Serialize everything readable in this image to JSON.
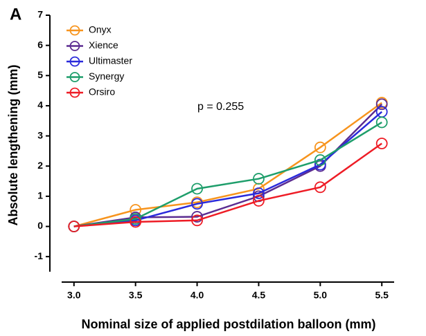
{
  "chart_data": {
    "type": "line",
    "panel_label": "A",
    "annotation": "p = 0.255",
    "x_label": "Nominal size of applied postdilation balloon (mm)",
    "y_label": "Absolute lengthening (mm)",
    "x": [
      3.0,
      3.5,
      4.0,
      4.5,
      5.0,
      5.5
    ],
    "xlim": [
      2.9,
      5.6
    ],
    "xticks": [
      {
        "value": 3.0,
        "label": "3.0"
      },
      {
        "value": 3.5,
        "label": "3.5"
      },
      {
        "value": 4.0,
        "label": "4.0"
      },
      {
        "value": 4.5,
        "label": "4.5"
      },
      {
        "value": 5.0,
        "label": "5.0"
      },
      {
        "value": 5.5,
        "label": "5.5"
      }
    ],
    "ylim": [
      -1.5,
      7
    ],
    "yticks": [
      -1,
      0,
      1,
      2,
      3,
      4,
      5,
      6,
      7
    ],
    "legend": "upper left",
    "series": [
      {
        "name": "Onyx",
        "color": "#f7941d",
        "values": [
          0,
          0.55,
          0.8,
          1.25,
          2.62,
          4.1
        ]
      },
      {
        "name": "Xience",
        "color": "#5b2c91",
        "values": [
          0,
          0.3,
          0.32,
          1.0,
          2.0,
          4.05
        ]
      },
      {
        "name": "Ultimaster",
        "color": "#2a2adb",
        "values": [
          0,
          0.2,
          0.75,
          1.1,
          2.05,
          3.8
        ]
      },
      {
        "name": "Synergy",
        "color": "#1e9e6b",
        "values": [
          0,
          0.25,
          1.25,
          1.58,
          2.2,
          3.45
        ]
      },
      {
        "name": "Orsiro",
        "color": "#ee1c25",
        "values": [
          0,
          0.15,
          0.2,
          0.85,
          1.3,
          2.75
        ]
      }
    ]
  }
}
